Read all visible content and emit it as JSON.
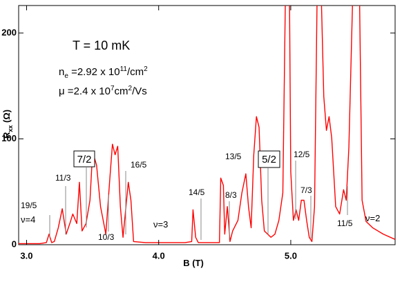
{
  "chart_data": {
    "type": "line",
    "xlabel": [
      "B (T)"
    ],
    "ylabel": [
      "R",
      "xx",
      " (Ω)"
    ],
    "temperature": "T = 10 mK",
    "density": [
      "n",
      "e",
      " =2.92 x 10",
      "11",
      "/cm",
      "2"
    ],
    "mobility": [
      "μ =2.4 x 10",
      "7",
      "cm",
      "2",
      "/Vs"
    ],
    "annotations": [
      "19/5",
      "ν=4",
      "11/3",
      "7/2",
      "16/5",
      "10/3",
      "ν=3",
      "14/5",
      "8/3",
      "13/5",
      "5/2",
      "12/5",
      "7/3",
      "11/5",
      "ν=2"
    ],
    "xlim": [
      2.94,
      5.79
    ],
    "ylim": [
      0,
      226
    ],
    "xticks": [
      {
        "value": 3,
        "label": "3.0"
      },
      {
        "value": 4,
        "label": "4.0"
      },
      {
        "value": 5,
        "label": "5.0"
      }
    ],
    "yticks": [
      0,
      100,
      200
    ],
    "x": [
      2.94,
      3.0,
      3.1,
      3.15,
      3.17,
      3.19,
      3.21,
      3.24,
      3.27,
      3.3,
      3.33,
      3.35,
      3.38,
      3.4,
      3.42,
      3.45,
      3.48,
      3.5,
      3.53,
      3.56,
      3.6,
      3.63,
      3.65,
      3.67,
      3.69,
      3.71,
      3.73,
      3.77,
      3.79,
      3.81,
      3.9,
      4.0,
      4.1,
      4.2,
      4.25,
      4.26,
      4.28,
      4.3,
      4.4,
      4.46,
      4.47,
      4.49,
      4.5,
      4.52,
      4.54,
      4.56,
      4.6,
      4.63,
      4.66,
      4.68,
      4.7,
      4.72,
      4.74,
      4.76,
      4.78,
      4.8,
      4.85,
      4.88,
      4.91,
      4.94,
      4.96,
      4.99,
      5.0,
      5.02,
      5.04,
      5.06,
      5.08,
      5.1,
      5.12,
      5.14,
      5.16,
      5.18,
      5.2,
      5.23,
      5.25,
      5.27,
      5.29,
      5.31,
      5.34,
      5.37,
      5.4,
      5.42,
      5.44,
      5.47,
      5.52,
      5.54,
      5.57,
      5.62,
      5.7,
      5.79
    ],
    "series": [
      {
        "color": "#ff0000",
        "values": [
          1,
          1,
          1,
          2,
          10,
          2,
          3,
          16,
          34,
          10,
          21,
          29,
          20,
          59,
          13,
          20,
          42,
          88,
          75,
          36,
          10,
          62,
          95,
          85,
          93,
          36,
          7,
          59,
          42,
          3,
          2,
          2,
          2,
          2,
          3,
          33,
          7,
          2,
          2,
          2,
          63,
          56,
          10,
          36,
          3,
          13,
          23,
          49,
          67,
          36,
          16,
          85,
          121,
          111,
          42,
          13,
          7,
          10,
          23,
          49,
          240,
          240,
          69,
          23,
          33,
          23,
          42,
          42,
          23,
          7,
          3,
          36,
          240,
          240,
          140,
          108,
          121,
          101,
          36,
          29,
          52,
          42,
          92,
          240,
          240,
          42,
          22,
          16,
          10,
          5
        ]
      }
    ]
  }
}
